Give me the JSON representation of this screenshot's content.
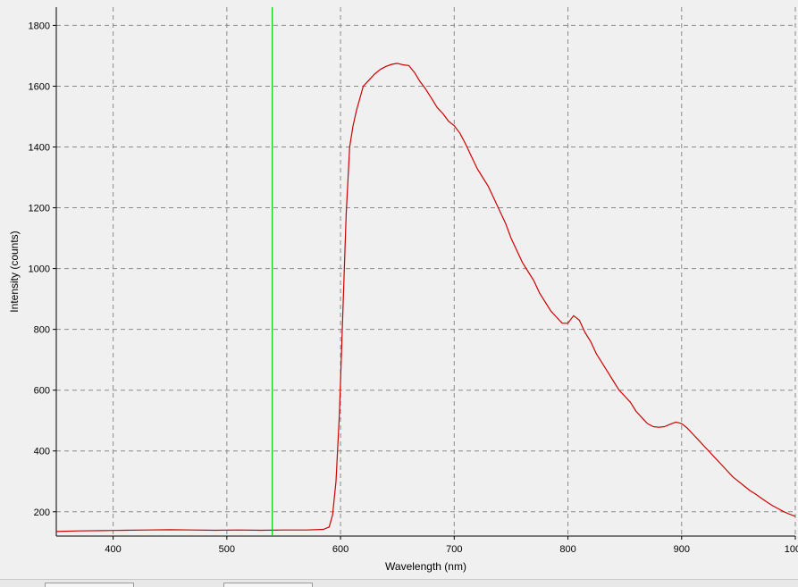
{
  "chart_data": {
    "type": "line",
    "xlabel": "Wavelength (nm)",
    "ylabel": "Intensity (counts)",
    "xlim": [
      350,
      1000
    ],
    "ylim": [
      120,
      1860
    ],
    "x_ticks": [
      400,
      500,
      600,
      700,
      800,
      900,
      1000
    ],
    "y_ticks": [
      200,
      400,
      600,
      800,
      1000,
      1200,
      1400,
      1600,
      1800
    ],
    "grid": true,
    "series": [
      {
        "color": "#cc0000",
        "x": [
          350,
          370,
          390,
          410,
          430,
          450,
          470,
          490,
          510,
          530,
          550,
          570,
          585,
          590,
          593,
          596,
          599,
          602,
          605,
          608,
          611,
          614,
          617,
          620,
          625,
          630,
          635,
          640,
          645,
          650,
          655,
          660,
          665,
          670,
          675,
          680,
          685,
          690,
          695,
          700,
          705,
          710,
          715,
          720,
          725,
          730,
          735,
          740,
          745,
          750,
          755,
          760,
          765,
          770,
          775,
          780,
          785,
          790,
          795,
          800,
          805,
          810,
          815,
          820,
          825,
          830,
          835,
          840,
          845,
          850,
          855,
          860,
          865,
          870,
          875,
          880,
          885,
          890,
          895,
          900,
          905,
          910,
          915,
          920,
          925,
          930,
          935,
          940,
          945,
          950,
          955,
          960,
          965,
          970,
          975,
          980,
          985,
          990,
          995,
          1000
        ],
        "y": [
          135,
          137,
          138,
          139,
          140,
          141,
          140,
          139,
          140,
          139,
          140,
          140,
          142,
          150,
          190,
          300,
          520,
          850,
          1180,
          1400,
          1470,
          1520,
          1560,
          1600,
          1620,
          1640,
          1655,
          1665,
          1672,
          1675,
          1670,
          1668,
          1645,
          1615,
          1590,
          1560,
          1530,
          1510,
          1485,
          1470,
          1445,
          1410,
          1370,
          1330,
          1300,
          1270,
          1230,
          1190,
          1150,
          1100,
          1060,
          1020,
          990,
          960,
          920,
          890,
          860,
          840,
          820,
          820,
          845,
          830,
          790,
          760,
          720,
          690,
          660,
          630,
          600,
          580,
          560,
          530,
          510,
          490,
          480,
          478,
          480,
          488,
          495,
          490,
          475,
          455,
          435,
          415,
          395,
          375,
          355,
          335,
          315,
          300,
          285,
          270,
          258,
          245,
          232,
          220,
          210,
          200,
          192,
          185
        ]
      },
      {
        "color": "#00cc00",
        "x": [
          540,
          540
        ],
        "y": [
          120,
          1860
        ]
      }
    ]
  }
}
